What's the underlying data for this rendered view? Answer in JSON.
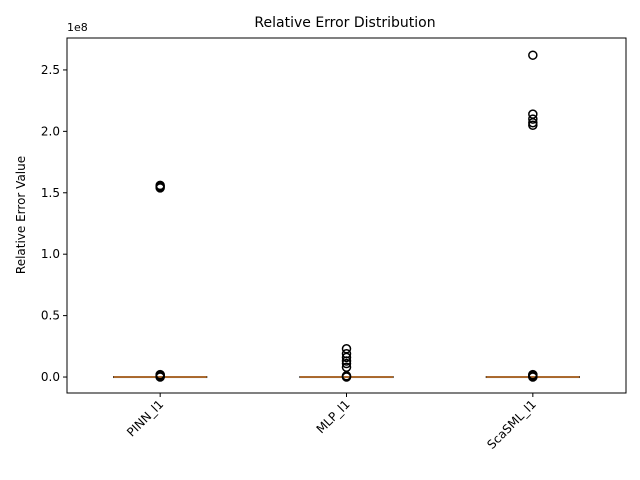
{
  "chart_data": {
    "type": "box",
    "title": "Relative Error Distribution",
    "xlabel": "",
    "ylabel": "Relative Error Value",
    "y_offset_label": "1e8",
    "y_scale_factor": 100000000,
    "ylim": [
      -0.13,
      2.76
    ],
    "y_ticks": [
      0.0,
      0.5,
      1.0,
      1.5,
      2.0,
      2.5
    ],
    "y_tick_labels": [
      "0.0",
      "0.5",
      "1.0",
      "1.5",
      "2.0",
      "2.5"
    ],
    "categories": [
      "PINN_l1",
      "MLP_l1",
      "ScaSML_l1"
    ],
    "series": [
      {
        "category": "PINN_l1",
        "q1": 0.0,
        "median": 0.0,
        "q3": 0.0,
        "whisker_low": 0.0,
        "whisker_high": 0.0,
        "outliers": [
          0.0,
          0.005,
          0.01,
          0.015,
          0.02,
          1.54,
          1.55,
          1.56
        ]
      },
      {
        "category": "MLP_l1",
        "q1": 0.0,
        "median": 0.0,
        "q3": 0.0,
        "whisker_low": 0.0,
        "whisker_high": 0.0,
        "outliers": [
          0.0,
          0.005,
          0.01,
          0.08,
          0.11,
          0.13,
          0.16,
          0.19,
          0.23
        ]
      },
      {
        "category": "ScaSML_l1",
        "q1": 0.0,
        "median": 0.0,
        "q3": 0.0,
        "whisker_low": 0.0,
        "whisker_high": 0.0,
        "outliers": [
          0.0,
          0.005,
          0.01,
          0.015,
          0.02,
          2.05,
          2.07,
          2.1,
          2.14,
          2.62
        ]
      }
    ],
    "colors": {
      "median": "#e08a3c",
      "box": "#000000",
      "outlier": "#000000"
    },
    "grid": false,
    "legend": "none"
  }
}
